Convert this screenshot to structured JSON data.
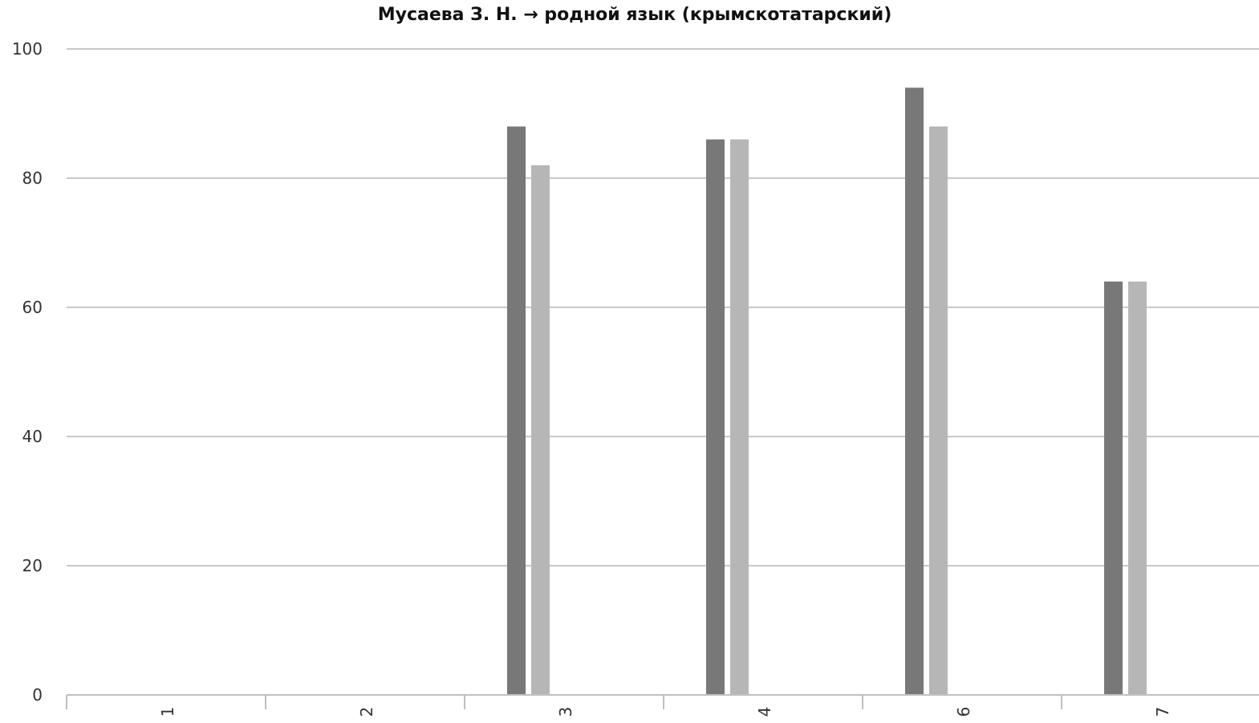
{
  "chart_data": {
    "type": "bar",
    "title": "Мусаева З. Н. → родной язык (крымскотатарский)",
    "xlabel": "",
    "ylabel": "",
    "categories": [
      "1",
      "2",
      "3",
      "4",
      "6",
      "7"
    ],
    "series": [
      {
        "values": [
          null,
          null,
          88,
          86,
          94,
          64
        ],
        "color": "#787878"
      },
      {
        "values": [
          null,
          null,
          82,
          86,
          88,
          64
        ],
        "color": "#b6b6b6"
      }
    ],
    "ylim": [
      0,
      100
    ],
    "yticks": [
      0,
      20,
      40,
      60,
      80,
      100
    ],
    "grid": true,
    "legend": "none",
    "colors": {
      "gridline": "#c8c8c8",
      "axis": "#c0c0c0",
      "tick_text": "#333333"
    }
  }
}
